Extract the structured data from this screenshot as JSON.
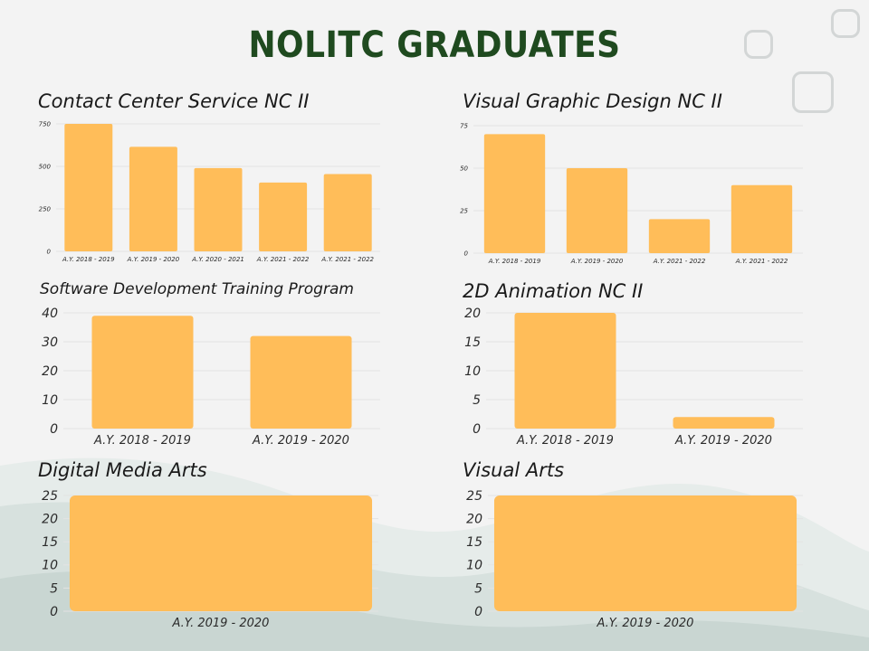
{
  "title": "NOLITC GRADUATES",
  "colors": {
    "bar": "#ffbd59",
    "grid": "#e3e3e3",
    "title": "#1f4a1f",
    "deco_border": "#d3d6d6",
    "wave": "#cfd9d6"
  },
  "chart_data": [
    {
      "type": "bar",
      "title": "Contact Center Service NC II",
      "categories": [
        "A.Y. 2018 - 2019",
        "A.Y. 2019 - 2020",
        "A.Y. 2020 - 2021",
        "A.Y. 2021 - 2022",
        "A.Y. 2021 - 2022"
      ],
      "values": [
        750,
        615,
        490,
        405,
        455
      ],
      "yticks": [
        0,
        250,
        500,
        750
      ],
      "ylim": [
        0,
        750
      ],
      "grid": true
    },
    {
      "type": "bar",
      "title": "Visual Graphic Design NC II",
      "categories": [
        "A.Y. 2018 - 2019",
        "A.Y. 2019 - 2020",
        "A.Y. 2021 - 2022",
        "A.Y. 2021 - 2022"
      ],
      "values": [
        70,
        50,
        20,
        40
      ],
      "yticks": [
        0,
        25,
        50,
        75
      ],
      "ylim": [
        0,
        75
      ],
      "grid": true
    },
    {
      "type": "bar",
      "title": "Software Development Training Program",
      "categories": [
        "A.Y. 2018 - 2019",
        "A.Y. 2019 - 2020"
      ],
      "values": [
        39,
        32
      ],
      "yticks": [
        0,
        10,
        20,
        30,
        40
      ],
      "ylim": [
        0,
        40
      ],
      "grid": true
    },
    {
      "type": "bar",
      "title": "2D Animation NC II",
      "categories": [
        "A.Y. 2018 - 2019",
        "A.Y. 2019 - 2020"
      ],
      "values": [
        20,
        2
      ],
      "yticks": [
        0,
        5,
        10,
        15,
        20
      ],
      "ylim": [
        0,
        20
      ],
      "grid": true
    },
    {
      "type": "bar",
      "title": "Digital Media Arts",
      "categories": [
        "A.Y. 2019 - 2020"
      ],
      "values": [
        25
      ],
      "yticks": [
        0,
        5,
        10,
        15,
        20,
        25
      ],
      "ylim": [
        0,
        25
      ],
      "grid": true
    },
    {
      "type": "bar",
      "title": "Visual Arts",
      "categories": [
        "A.Y. 2019 - 2020"
      ],
      "values": [
        25
      ],
      "yticks": [
        0,
        5,
        10,
        15,
        20,
        25
      ],
      "ylim": [
        0,
        25
      ],
      "grid": true
    }
  ]
}
